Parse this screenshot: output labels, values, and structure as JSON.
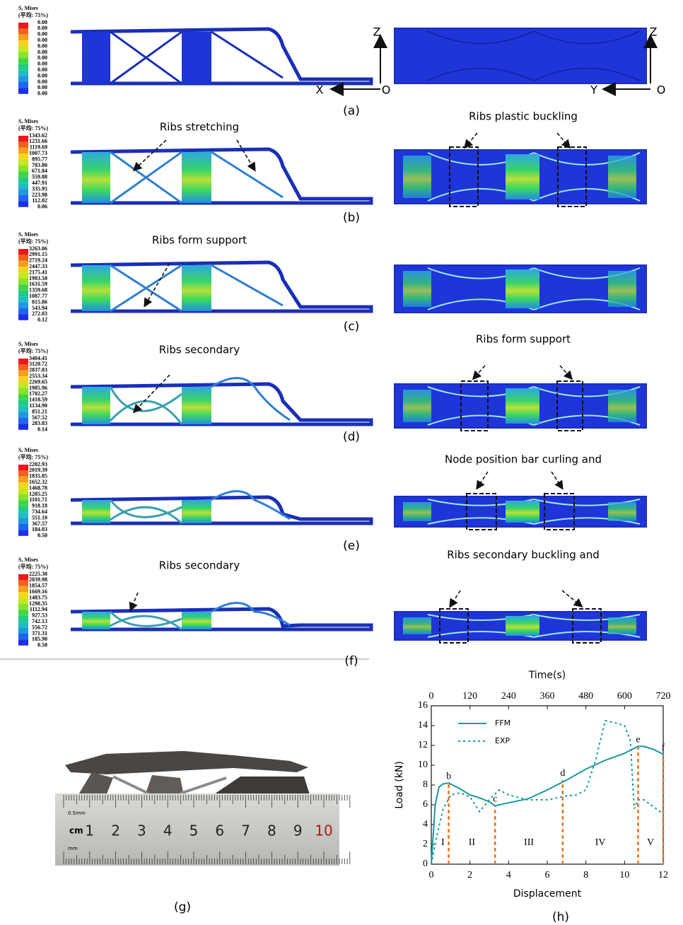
{
  "panels": [
    {
      "label": "(a)",
      "legend": {
        "title": "S, Mises",
        "subtitle": "(平均: 75%)",
        "values": [
          "0.00",
          "0.00",
          "0.00",
          "0.00",
          "0.00",
          "0.00",
          "0.00",
          "0.00",
          "0.00",
          "0.00",
          "0.00",
          "0.00",
          "0.00"
        ]
      },
      "axis_labels": {
        "left": [
          "Z",
          "X",
          "O"
        ],
        "right": [
          "Z",
          "Y",
          "O"
        ]
      }
    },
    {
      "label": "(b)",
      "legend": {
        "title": "S, Mises",
        "subtitle": "(平均: 75%)",
        "values": [
          "1343.62",
          "1231.66",
          "1119.69",
          "1007.73",
          "895.77",
          "783.80",
          "671.84",
          "559.88",
          "447.91",
          "335.95",
          "223.98",
          "112.02",
          "0.06"
        ]
      },
      "left_note": "Ribs stretching",
      "right_note": "Ribs plastic buckling"
    },
    {
      "label": "(c)",
      "legend": {
        "title": "S, Mises",
        "subtitle": "(平均: 75%)",
        "values": [
          "3263.06",
          "2991.15",
          "2719.24",
          "2447.33",
          "2175.41",
          "1903.50",
          "1631.59",
          "1359.68",
          "1087.77",
          "815.86",
          "543.94",
          "272.03",
          "0.12"
        ]
      },
      "left_note": "Ribs form support"
    },
    {
      "label": "(d)",
      "legend": {
        "title": "S, Mises",
        "subtitle": "(平均: 75%)",
        "values": [
          "3404.41",
          "3120.72",
          "2837.03",
          "2553.34",
          "2269.65",
          "1985.96",
          "1702.27",
          "1418.59",
          "1134.90",
          "851.21",
          "567.52",
          "283.83",
          "0.14"
        ]
      },
      "left_note": "Ribs secondary",
      "right_note": "Ribs form support"
    },
    {
      "label": "(e)",
      "legend": {
        "title": "S, Mises",
        "subtitle": "(平均: 75%)",
        "values": [
          "2202.93",
          "2019.39",
          "1835.85",
          "1652.32",
          "1468.78",
          "1285.25",
          "1101.71",
          "918.18",
          "734.64",
          "551.10",
          "367.57",
          "184.03",
          "0.50"
        ]
      },
      "right_note": "Node position bar curling and"
    },
    {
      "label": "(f)",
      "legend": {
        "title": "S, Mises",
        "subtitle": "(平均: 75%)",
        "values": [
          "2225.38",
          "2039.98",
          "1854.57",
          "1669.16",
          "1483.75",
          "1298.35",
          "1112.94",
          "927.53",
          "742.13",
          "556.72",
          "371.31",
          "185.90",
          "0.50"
        ]
      },
      "left_note": "Ribs secondary",
      "right_note": "Ribs secondary buckling and"
    }
  ],
  "photo": {
    "label": "(g)",
    "ruler": {
      "unit": "cm",
      "small_unit": "0.5mm",
      "mm": "mm",
      "numbers": [
        "1",
        "2",
        "3",
        "4",
        "5",
        "6",
        "7",
        "8",
        "9",
        "10"
      ]
    }
  },
  "chart_data": {
    "type": "line",
    "label": "(h)",
    "xlabel": "Displacement",
    "ylabel": "Load (kN)",
    "x2label": "Time(s)",
    "xlim": [
      0,
      12
    ],
    "xticks": [
      0,
      2,
      4,
      6,
      8,
      10,
      12
    ],
    "x2lim": [
      0,
      720
    ],
    "x2ticks": [
      0,
      120,
      240,
      360,
      480,
      600,
      720
    ],
    "ylim": [
      0,
      16
    ],
    "yticks": [
      0,
      2,
      4,
      6,
      8,
      10,
      12,
      14,
      16
    ],
    "series": [
      {
        "name": "FFM",
        "color": "#1a9a9a",
        "dash": "solid",
        "x": [
          0,
          0.2,
          0.4,
          0.6,
          0.9,
          1.5,
          2,
          2.5,
          3,
          3.3,
          4,
          5,
          6,
          7,
          8,
          9,
          10,
          10.7,
          11,
          11.5,
          12
        ],
        "values": [
          0,
          6,
          7.8,
          8.1,
          8.2,
          7.6,
          7,
          6.7,
          6.3,
          5.9,
          6.2,
          6.6,
          7.5,
          8.5,
          9.6,
          10.5,
          11.2,
          11.9,
          11.9,
          11.6,
          11.1
        ]
      },
      {
        "name": "EXP",
        "color": "#1a9a9a",
        "dash": "dotted",
        "x": [
          0,
          0.3,
          0.6,
          1,
          1.5,
          2,
          2.5,
          3,
          3.5,
          4,
          5,
          6,
          7,
          7.5,
          8,
          8.5,
          9,
          9.5,
          10,
          10.3,
          10.5,
          10.7,
          11,
          11.5,
          12
        ],
        "values": [
          0,
          3,
          5.5,
          7,
          7.2,
          6.8,
          5.3,
          6.5,
          7.5,
          7,
          6.5,
          6.5,
          6.9,
          7,
          7.5,
          10.5,
          14.5,
          14.3,
          14,
          12.5,
          5.6,
          6.5,
          6.5,
          5.8,
          5.1
        ]
      }
    ],
    "marker_color": "#e8711c",
    "markers": [
      {
        "label": "b",
        "x": 0.9,
        "y": 8.2
      },
      {
        "label": "c",
        "x": 3.3,
        "y": 5.9
      },
      {
        "label": "d",
        "x": 6.8,
        "y": 8.5
      },
      {
        "label": "e",
        "x": 10.7,
        "y": 11.9
      },
      {
        "label": "f",
        "x": 12,
        "y": 11.1
      }
    ],
    "regions": [
      "I",
      "II",
      "III",
      "IV",
      "V"
    ]
  }
}
